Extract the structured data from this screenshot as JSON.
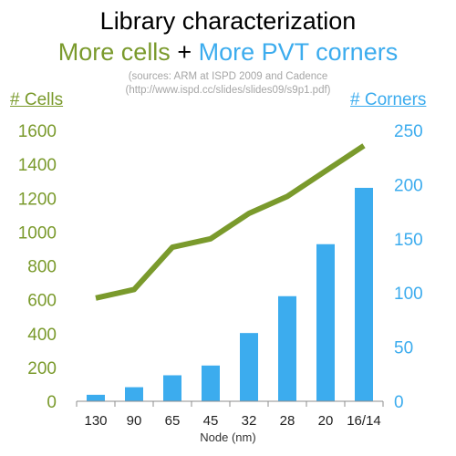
{
  "title": "Library characterization",
  "subtitle": {
    "part1": "More cells",
    "plus": "+",
    "part2": "More PVT corners"
  },
  "sources": {
    "line1": "(sources: ARM at ISPD 2009 and Cadence",
    "line2": "(http://www.ispd.cc/slides/slides09/s9p1.pdf)"
  },
  "colors": {
    "cells_line": "#7a9a2c",
    "corners_bar": "#3cacee"
  },
  "chart_data": {
    "type": "bar+line",
    "categories": [
      "130",
      "90",
      "65",
      "45",
      "32",
      "28",
      "20",
      "16/14"
    ],
    "xlabel": "Node (nm)",
    "y_left": {
      "label": "# Cells",
      "ticks": [
        "0",
        "200",
        "400",
        "600",
        "800",
        "1000",
        "1200",
        "1400",
        "1600"
      ],
      "ylim": [
        0,
        1600
      ]
    },
    "y_right": {
      "label": "# Corners",
      "ticks": [
        "0",
        "50",
        "100",
        "150",
        "200",
        "250"
      ],
      "ylim": [
        0,
        250
      ]
    },
    "series": [
      {
        "name": "# Cells",
        "type": "line",
        "axis": "left",
        "values": [
          610,
          660,
          910,
          960,
          1110,
          1210,
          1360,
          1510
        ]
      },
      {
        "name": "# Corners",
        "type": "bar",
        "axis": "right",
        "values": [
          6,
          13,
          24,
          33,
          63,
          97,
          145,
          197
        ]
      }
    ]
  }
}
